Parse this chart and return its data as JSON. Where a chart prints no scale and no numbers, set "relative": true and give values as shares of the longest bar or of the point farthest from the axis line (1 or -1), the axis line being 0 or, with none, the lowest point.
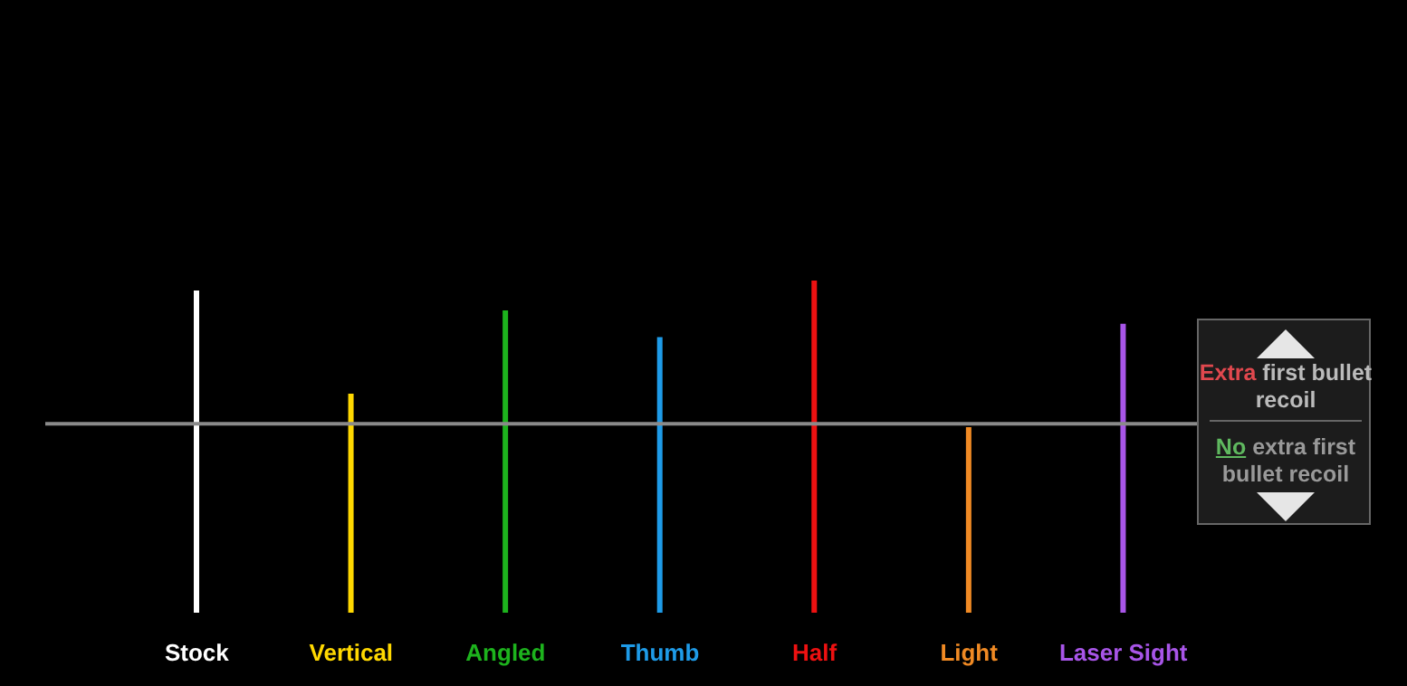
{
  "chart_data": {
    "type": "bar",
    "relative": true,
    "categories": [
      "Stock",
      "Vertical",
      "Angled",
      "Thumb",
      "Half",
      "Light",
      "Laser Sight"
    ],
    "values": [
      0.97,
      0.66,
      0.91,
      0.83,
      1,
      0.56,
      0.87
    ],
    "colors": [
      "#ffffff",
      "#ffd800",
      "#1db31d",
      "#1e9be8",
      "#ee1111",
      "#f08a24",
      "#a855e8"
    ],
    "ref_lines": [
      {
        "axis": "y",
        "value": 0.57,
        "color": "#8a8a8a"
      }
    ],
    "annotations": [
      "Extra first bullet recoil",
      "No extra first bullet recoil"
    ]
  }
}
